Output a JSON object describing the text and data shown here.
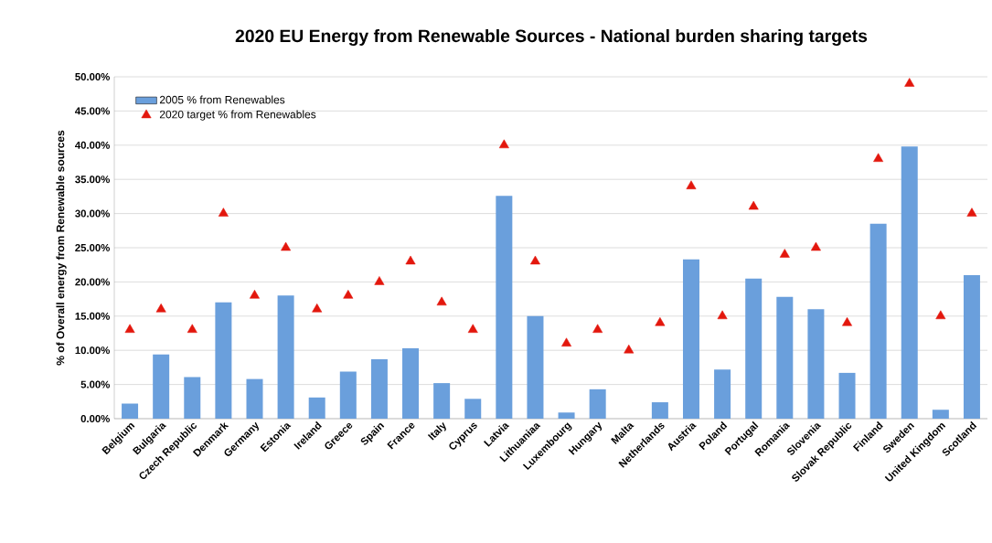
{
  "chart_data": {
    "type": "bar",
    "title": "2020 EU Energy from Renewable Sources - National burden sharing targets",
    "ylabel": "% of Overall energy from Renewable sources",
    "categories": [
      "Belgium",
      "Bulgaria",
      "Czech Republic",
      "Denmark",
      "Germany",
      "Estonia",
      "Ireland",
      "Greece",
      "Spain",
      "France",
      "Italy",
      "Cyprus",
      "Latvia",
      "Lithuaniaa",
      "Luxembourg",
      "Hungary",
      "Malta",
      "Netherlands",
      "Austria",
      "Poland",
      "Portugal",
      "Romania",
      "Slovenia",
      "Slovak Republic",
      "Finland",
      "Sweden",
      "United Kingdom",
      "Scotland"
    ],
    "series": [
      {
        "name": "2005 % from Renewables",
        "color": "#6a9fdc",
        "values": [
          2.2,
          9.4,
          6.1,
          17.0,
          5.8,
          18.0,
          3.1,
          6.9,
          8.7,
          10.3,
          5.2,
          2.9,
          32.6,
          15.0,
          0.9,
          4.3,
          0,
          2.4,
          23.3,
          7.2,
          20.5,
          17.8,
          16.0,
          6.7,
          28.5,
          39.8,
          1.3,
          21.0
        ]
      },
      {
        "name": "2020 target % from Renewables",
        "type": "scatter",
        "marker": "triangle",
        "color": "#e3170d",
        "values": [
          13,
          16,
          13,
          30,
          18,
          25,
          16,
          18,
          20,
          23,
          17,
          13,
          40,
          23,
          11,
          13,
          10,
          14,
          34,
          15,
          31,
          24,
          25,
          14,
          38,
          49,
          15,
          30
        ]
      }
    ],
    "ylim": [
      0,
      50
    ],
    "yticks": [
      {
        "value": 0,
        "label": "0.00%"
      },
      {
        "value": 5,
        "label": "5.00%"
      },
      {
        "value": 10,
        "label": "10.00%"
      },
      {
        "value": 15,
        "label": "15.00%"
      },
      {
        "value": 20,
        "label": "20.00%"
      },
      {
        "value": 25,
        "label": "25.00%"
      },
      {
        "value": 30,
        "label": "30.00%"
      },
      {
        "value": 35,
        "label": "35.00%"
      },
      {
        "value": 40,
        "label": "40.00%"
      },
      {
        "value": 45,
        "label": "45.00%"
      },
      {
        "value": 50,
        "label": "50.00%"
      }
    ],
    "grid": "y",
    "legend": "top left"
  }
}
